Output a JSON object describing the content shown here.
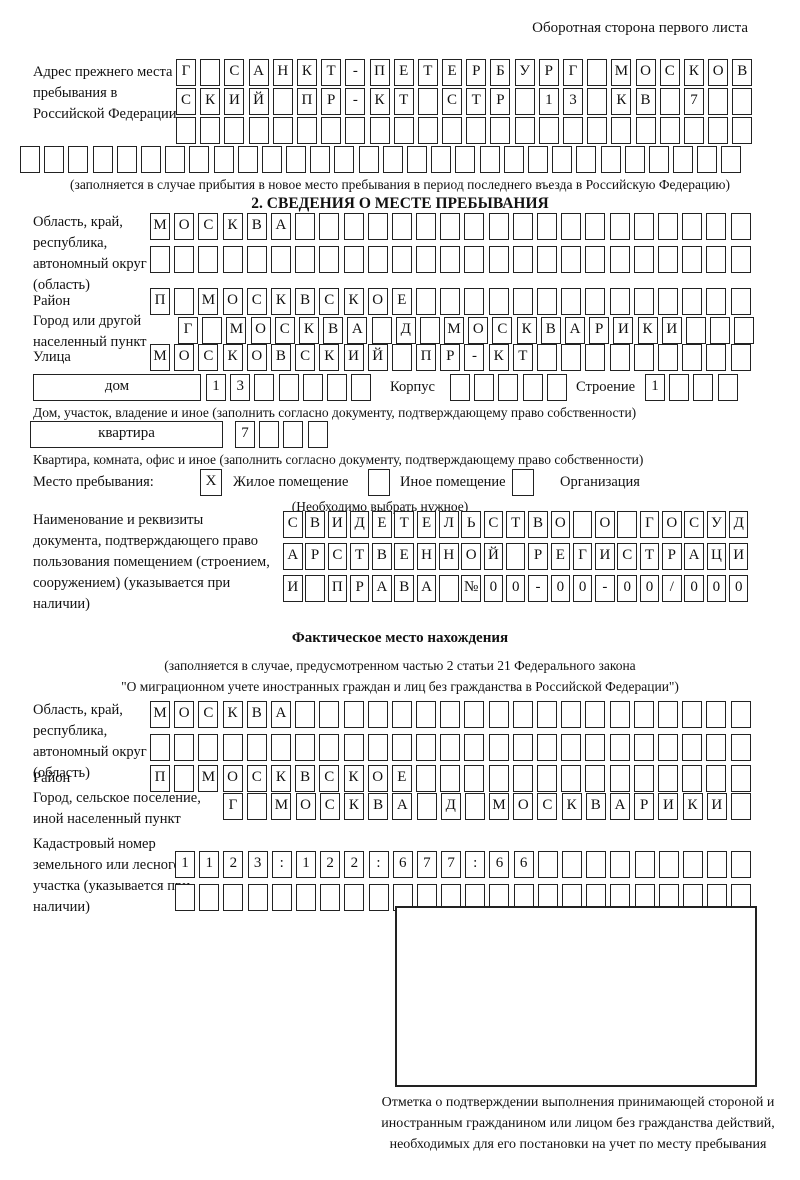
{
  "page": {
    "side_note": "Оборотная сторона первого листа"
  },
  "prev_address": {
    "label": "Адрес прежнего места пребывания в Российской Федерации",
    "row1": {
      "text": "Г_САНКТ-ПЕТЕРБУРГ_МОСКОВ",
      "len": 24
    },
    "row2": {
      "text": "СКИЙ_ПР-КТ_СТР_13_КВ_7",
      "len": 24
    },
    "row3": {
      "text": "",
      "len": 24
    },
    "row4": {
      "text": "",
      "len": 30
    },
    "note": "(заполняется в случае прибытия в новое место пребывания в период последнего въезда в Российскую Федерацию)"
  },
  "section2": {
    "title": "2. СВЕДЕНИЯ О МЕСТЕ ПРЕБЫВАНИЯ",
    "oblast": {
      "label": "Область, край, республика, автономный округ (область)",
      "row1": {
        "text": "МОСКВА",
        "len": 25
      },
      "row2": {
        "text": "",
        "len": 25
      }
    },
    "rayon": {
      "label": "Район",
      "row": {
        "text": "П_МОСКВСКОЕ",
        "len": 25
      }
    },
    "gorod": {
      "label": "Город или другой населенный пункт",
      "row": {
        "text": "Г_МОСКВА_Д_МОСКВАРИКИ",
        "len": 24
      }
    },
    "ulitsa": {
      "label": "Улица",
      "row": {
        "text": "МОСКОВСКИЙ_ПР-КТ",
        "len": 25
      }
    },
    "dom": {
      "box_label": "дом",
      "cells": {
        "text": "13",
        "len": 7
      },
      "korpus_label": "Корпус",
      "korpus_cells": {
        "text": "",
        "len": 5
      },
      "stroenie_label": "Строение",
      "stroenie_cells": {
        "text": "1",
        "len": 4
      },
      "note": "Дом, участок, владение и иное (заполнить согласно документу, подтверждающему право собственности)"
    },
    "kvartira": {
      "box_label": "квартира",
      "cells": {
        "text": "7",
        "len": 4
      },
      "note": "Квартира, комната, офис и иное (заполнить согласно документу, подтверждающему право собственности)"
    },
    "mesto": {
      "label": "Место пребывания:",
      "options": [
        {
          "label": "Жилое помещение",
          "mark": "X"
        },
        {
          "label": "Иное помещение",
          "mark": ""
        },
        {
          "label": "Организация",
          "mark": ""
        }
      ],
      "note": "(Необходимо выбрать нужное)"
    },
    "doc": {
      "label": "Наименование и реквизиты документа, подтверждающего право пользования помещением (строением, сооружением) (указывается при наличии)",
      "row1": {
        "text": "СВИДЕТЕЛЬСТВО_О_ГОСУД",
        "len": 21
      },
      "row2": {
        "text": "АРСТВЕННОЙ_РЕГИСТРАЦИ",
        "len": 21
      },
      "row3": {
        "text": "И_ПРАВА_№00-00-00/000",
        "len": 21
      }
    }
  },
  "fact": {
    "title": "Фактическое место нахождения",
    "note1": "(заполняется в случае, предусмотренном частью 2 статьи 21 Федерального закона",
    "note2": "\"О миграционном учете иностранных граждан и лиц без гражданства в Российской Федерации\")",
    "oblast": {
      "label": "Область, край, республика, автономный округ (область)",
      "row1": {
        "text": "МОСКВА",
        "len": 25
      },
      "row2": {
        "text": "",
        "len": 25
      }
    },
    "rayon": {
      "label": "Район",
      "row": {
        "text": "П_МОСКВСКОЕ",
        "len": 25
      }
    },
    "gorod": {
      "label": "Город, сельское поселение, иной населенный пункт",
      "row": {
        "text": "Г_МОСКВА_Д_МОСКВАРИКИ",
        "len": 22
      }
    },
    "kadastr": {
      "label": "Кадастровый номер земельного или лесного участка (указывается при наличии)",
      "row1": {
        "text": "1123:122:677:66",
        "len": 24
      },
      "row2": {
        "text": "",
        "len": 24
      }
    }
  },
  "stamp": {
    "caption": "Отметка о подтверждении выполнения принимающей стороной и иностранным гражданином или лицом без гражданства действий, необходимых для его постановки на учет по месту пребывания"
  }
}
